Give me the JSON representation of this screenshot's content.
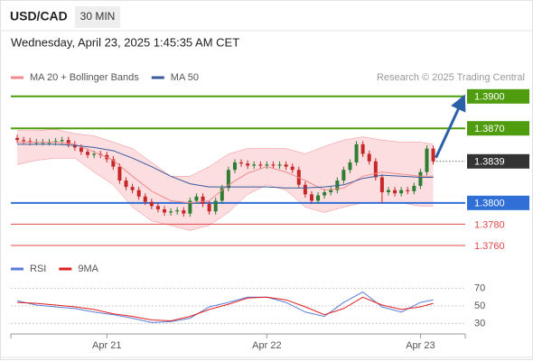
{
  "header": {
    "symbol": "USD/CAD",
    "interval": "30 MIN",
    "timestamp": "Wednesday, April 23, 2025 1:45:35 AM CET"
  },
  "chart_data": [
    {
      "type": "candlestick",
      "source": "Research © 2025 Trading Central",
      "x": [
        0,
        1,
        2,
        3,
        4,
        5,
        6,
        7,
        8,
        9,
        10,
        11,
        12,
        13,
        14,
        15,
        16,
        17,
        18,
        19,
        20,
        21,
        22,
        23,
        24,
        25,
        26,
        27,
        28,
        29,
        30,
        31,
        32,
        33,
        34,
        35,
        36,
        37,
        38,
        39,
        40,
        41,
        42,
        43,
        44,
        45,
        46,
        47,
        48,
        49,
        50,
        51,
        52,
        53,
        54,
        55,
        56,
        57,
        58,
        59,
        60,
        61,
        62,
        63,
        64,
        65
      ],
      "open": [
        1.3861,
        1.3859,
        1.3858,
        1.3857,
        1.3857,
        1.3857,
        1.3857,
        1.3858,
        1.3859,
        1.3855,
        1.3852,
        1.3848,
        1.3845,
        1.3846,
        1.3845,
        1.3841,
        1.3834,
        1.3821,
        1.3815,
        1.3812,
        1.3806,
        1.3801,
        1.3797,
        1.3794,
        1.3791,
        1.3792,
        1.3793,
        1.379,
        1.3802,
        1.3806,
        1.3799,
        1.3792,
        1.3802,
        1.3814,
        1.3831,
        1.3838,
        1.3837,
        1.3835,
        1.3836,
        1.3835,
        1.3836,
        1.3835,
        1.3836,
        1.3834,
        1.3831,
        1.3817,
        1.3808,
        1.3802,
        1.3807,
        1.381,
        1.3812,
        1.3821,
        1.3831,
        1.3838,
        1.3855,
        1.3846,
        1.3839,
        1.3824,
        1.381,
        1.3812,
        1.3809,
        1.3812,
        1.3811,
        1.3816,
        1.3829,
        1.3851
      ],
      "high": [
        1.3864,
        1.3862,
        1.3861,
        1.386,
        1.386,
        1.386,
        1.3861,
        1.3862,
        1.3862,
        1.3858,
        1.3855,
        1.3851,
        1.3849,
        1.3849,
        1.3848,
        1.3844,
        1.3837,
        1.3824,
        1.3818,
        1.3815,
        1.3809,
        1.3804,
        1.38,
        1.3797,
        1.3795,
        1.3796,
        1.3796,
        1.3805,
        1.3809,
        1.3809,
        1.3802,
        1.3805,
        1.3817,
        1.3834,
        1.3841,
        1.3841,
        1.384,
        1.3839,
        1.3839,
        1.3839,
        1.3839,
        1.3839,
        1.3839,
        1.3837,
        1.3834,
        1.382,
        1.3811,
        1.381,
        1.3813,
        1.3815,
        1.3824,
        1.3834,
        1.3841,
        1.3858,
        1.3858,
        1.3849,
        1.3842,
        1.3827,
        1.3815,
        1.3815,
        1.3815,
        1.3815,
        1.3819,
        1.3832,
        1.3854,
        1.3854
      ],
      "low": [
        1.3856,
        1.3855,
        1.3854,
        1.3854,
        1.3854,
        1.3854,
        1.3854,
        1.3855,
        1.3852,
        1.3849,
        1.3845,
        1.3842,
        1.3842,
        1.3842,
        1.3838,
        1.3831,
        1.3818,
        1.3812,
        1.3809,
        1.3803,
        1.3798,
        1.3794,
        1.3791,
        1.3788,
        1.3788,
        1.3789,
        1.3787,
        1.3787,
        1.3799,
        1.3796,
        1.3789,
        1.3789,
        1.3799,
        1.3811,
        1.3828,
        1.3834,
        1.3832,
        1.3832,
        1.3832,
        1.3832,
        1.3832,
        1.3832,
        1.3831,
        1.3828,
        1.3814,
        1.3805,
        1.3799,
        1.3799,
        1.3804,
        1.3807,
        1.3809,
        1.3818,
        1.3828,
        1.3835,
        1.3843,
        1.3836,
        1.3821,
        1.38,
        1.3807,
        1.3806,
        1.3806,
        1.3808,
        1.3808,
        1.3813,
        1.3826,
        1.3836
      ],
      "close": [
        1.3859,
        1.3858,
        1.3857,
        1.3857,
        1.3857,
        1.3857,
        1.3858,
        1.3859,
        1.3855,
        1.3852,
        1.3848,
        1.3845,
        1.3846,
        1.3845,
        1.3841,
        1.3834,
        1.3821,
        1.3815,
        1.3812,
        1.3806,
        1.3801,
        1.3797,
        1.3794,
        1.3791,
        1.3792,
        1.3793,
        1.379,
        1.3802,
        1.3806,
        1.3799,
        1.3792,
        1.3802,
        1.3814,
        1.3831,
        1.3838,
        1.3837,
        1.3835,
        1.3836,
        1.3835,
        1.3836,
        1.3835,
        1.3836,
        1.3834,
        1.3831,
        1.3817,
        1.3808,
        1.3802,
        1.3807,
        1.381,
        1.3812,
        1.3821,
        1.3831,
        1.3838,
        1.3855,
        1.3846,
        1.3839,
        1.3824,
        1.381,
        1.3812,
        1.3809,
        1.3812,
        1.3811,
        1.3816,
        1.3829,
        1.3851,
        1.3839
      ],
      "up_color": "#2e7d32",
      "down_color": "#c62828",
      "xlim": [
        -1,
        70
      ],
      "ylim": [
        1.3749,
        1.391
      ],
      "series": [
        {
          "name": "MA 20 + Bollinger Bands",
          "color": "#f08a8a",
          "band_color": "#fbd6d9",
          "x": [
            0,
            3,
            6,
            9,
            12,
            15,
            18,
            21,
            24,
            27,
            30,
            33,
            36,
            39,
            42,
            45,
            48,
            51,
            54,
            57,
            60,
            63,
            65
          ],
          "values": [
            1.3857,
            1.3857,
            1.3857,
            1.3855,
            1.3848,
            1.384,
            1.3825,
            1.3811,
            1.3802,
            1.38,
            1.3802,
            1.3817,
            1.3828,
            1.3834,
            1.3829,
            1.3821,
            1.3812,
            1.3814,
            1.3825,
            1.3829,
            1.3827,
            1.3825,
            1.3825
          ],
          "upper": [
            1.3868,
            1.3868,
            1.3869,
            1.3865,
            1.3863,
            1.3857,
            1.3851,
            1.3838,
            1.3825,
            1.3825,
            1.3834,
            1.3846,
            1.3851,
            1.3851,
            1.3851,
            1.3846,
            1.3853,
            1.3859,
            1.3862,
            1.3859,
            1.3857,
            1.3857,
            1.3855
          ],
          "lower": [
            1.3836,
            1.384,
            1.3842,
            1.3842,
            1.3829,
            1.3817,
            1.3796,
            1.3783,
            1.3779,
            1.3774,
            1.3779,
            1.3791,
            1.3808,
            1.3817,
            1.3812,
            1.3796,
            1.3791,
            1.3796,
            1.38,
            1.38,
            1.38,
            1.3797,
            1.3797
          ]
        },
        {
          "name": "MA 50",
          "color": "#3a5a9a",
          "x": [
            0,
            3,
            6,
            9,
            12,
            15,
            18,
            21,
            24,
            27,
            30,
            33,
            36,
            39,
            42,
            45,
            48,
            51,
            54,
            57,
            60,
            63,
            65
          ],
          "values": [
            1.3855,
            1.3855,
            1.3855,
            1.3854,
            1.3852,
            1.3849,
            1.3842,
            1.3834,
            1.3825,
            1.3818,
            1.3815,
            1.3815,
            1.3815,
            1.3815,
            1.3814,
            1.3814,
            1.3815,
            1.3817,
            1.3823,
            1.3826,
            1.3825,
            1.3824,
            1.3824
          ]
        }
      ],
      "levels": [
        {
          "value": 1.39,
          "label": "1.3900",
          "color": "#4f9d0e",
          "kind": "box"
        },
        {
          "value": 1.387,
          "label": "1.3870",
          "color": "#4f9d0e",
          "kind": "box"
        },
        {
          "value": 1.3839,
          "label": "1.3839",
          "color": "#333333",
          "kind": "price"
        },
        {
          "value": 1.38,
          "label": "1.3800",
          "color": "#2f6fd6",
          "kind": "box"
        },
        {
          "value": 1.378,
          "label": "1.3780",
          "color": "#e04848",
          "kind": "text"
        },
        {
          "value": 1.376,
          "label": "1.3760",
          "color": "#e04848",
          "kind": "text"
        }
      ]
    },
    {
      "type": "line",
      "xlim": [
        -1,
        70
      ],
      "xticks": [
        {
          "value": 14,
          "label": "Apr 21"
        },
        {
          "value": 39,
          "label": "Apr 22"
        },
        {
          "value": 63,
          "label": "Apr 23"
        }
      ],
      "ylim": [
        18,
        82
      ],
      "yticks": [
        30,
        50,
        70
      ],
      "grid": true,
      "series": [
        {
          "name": "RSI",
          "color": "#5b7fd6",
          "x": [
            0,
            3,
            6,
            9,
            12,
            15,
            18,
            21,
            24,
            27,
            30,
            33,
            36,
            39,
            42,
            45,
            48,
            51,
            54,
            57,
            60,
            63,
            65
          ],
          "values": [
            56,
            51,
            49,
            47,
            43,
            40,
            36,
            31,
            32,
            36,
            49,
            54,
            60,
            60,
            54,
            43,
            38,
            54,
            66,
            49,
            43,
            54,
            57
          ]
        },
        {
          "name": "9MA",
          "color": "#e02020",
          "x": [
            0,
            3,
            6,
            9,
            12,
            15,
            18,
            21,
            24,
            27,
            30,
            33,
            36,
            39,
            42,
            45,
            48,
            51,
            54,
            57,
            60,
            63,
            65
          ],
          "values": [
            54,
            53,
            51,
            49,
            46,
            41,
            38,
            34,
            33,
            38,
            46,
            52,
            59,
            60,
            57,
            49,
            40,
            47,
            60,
            51,
            46,
            49,
            53
          ]
        }
      ]
    }
  ]
}
